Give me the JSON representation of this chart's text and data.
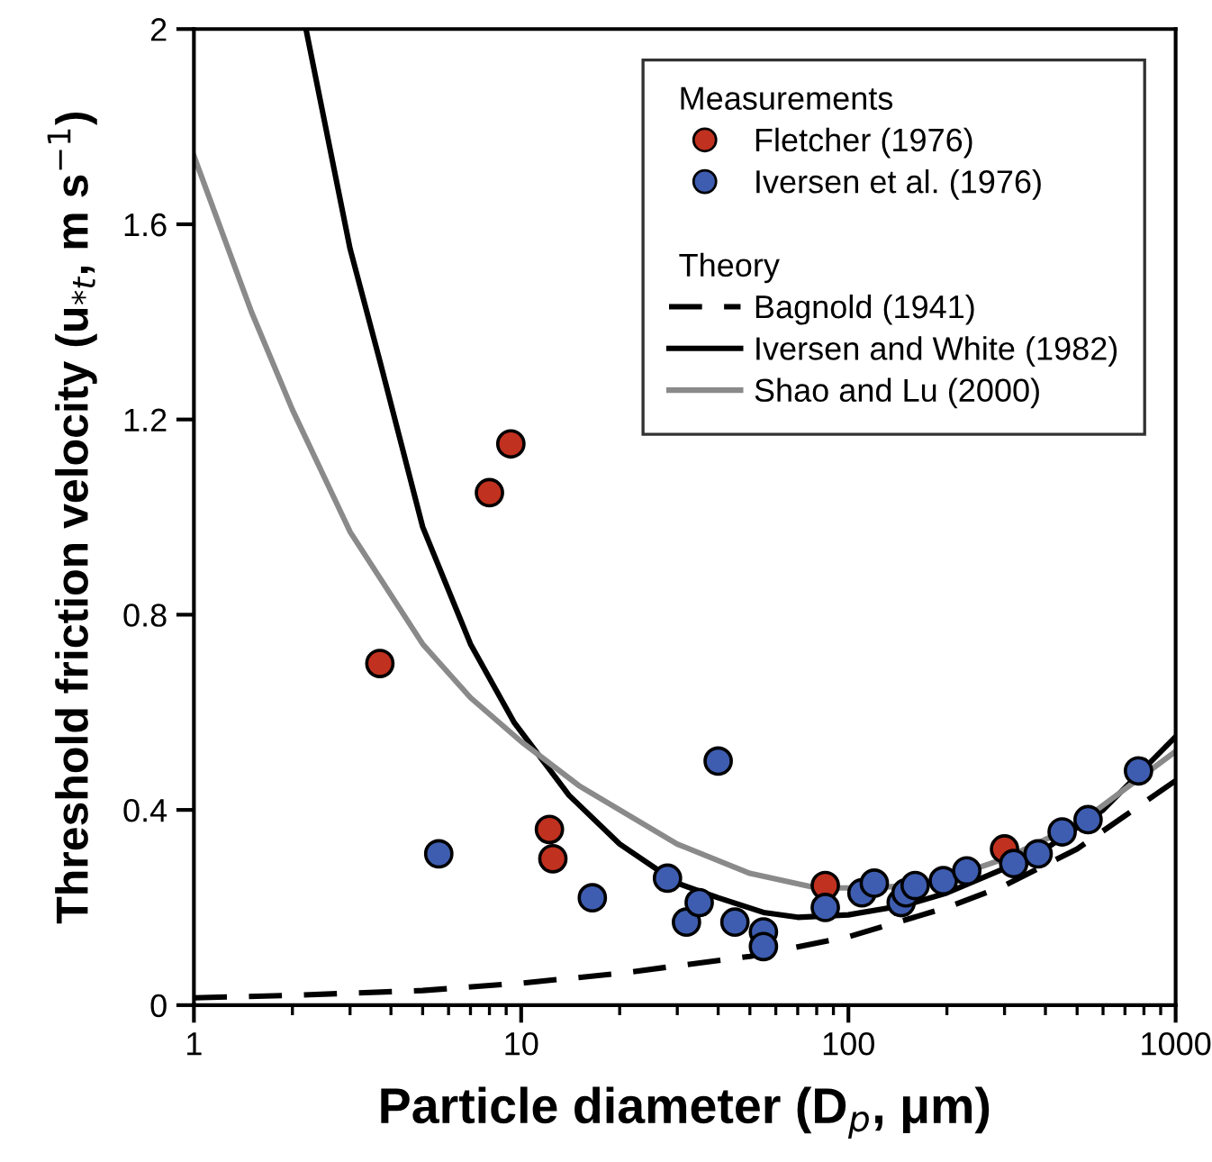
{
  "chart_data": {
    "type": "scatter",
    "xlabel": "Particle diameter (D$_{p}$, μm)",
    "ylabel": "Threshold friction velocity (u$_{*t}$, m s$^{−1}$)",
    "log": "x",
    "xlim": [
      1,
      1000
    ],
    "xticks": [
      1,
      10,
      100,
      1000
    ],
    "ylim": [
      0,
      2
    ],
    "yticks": [
      0,
      0.4,
      0.8,
      1.2,
      1.6,
      2
    ],
    "grid": false,
    "legend": "top right",
    "annotations": [
      "Measurements",
      "Theory"
    ],
    "series": [
      {
        "name": "Fletcher (1976)",
        "marker": "circle",
        "color": "#c0311f",
        "x": [
          3.7,
          8.0,
          9.3,
          12.2,
          12.5,
          85,
          300
        ],
        "values": [
          0.7,
          1.05,
          1.15,
          0.36,
          0.3,
          0.245,
          0.32
        ]
      },
      {
        "name": "Iversen et al. (1976)",
        "marker": "circle",
        "color": "#3e5db0",
        "x": [
          5.6,
          16.5,
          28,
          32,
          35,
          40,
          45,
          55,
          55,
          85,
          110,
          120,
          145,
          150,
          160,
          195,
          230,
          320,
          380,
          450,
          540,
          770
        ],
        "values": [
          0.31,
          0.22,
          0.26,
          0.17,
          0.21,
          0.5,
          0.17,
          0.15,
          0.12,
          0.2,
          0.23,
          0.25,
          0.21,
          0.23,
          0.245,
          0.255,
          0.275,
          0.29,
          0.31,
          0.355,
          0.38,
          0.48
        ]
      },
      {
        "name": "Bagnold (1941)",
        "type": "line",
        "line_style": "dashed",
        "color": "#000000",
        "x": [
          1,
          2,
          5,
          10,
          20,
          50,
          100,
          200,
          300,
          500,
          1000
        ],
        "values": [
          0.015,
          0.02,
          0.03,
          0.045,
          0.065,
          0.1,
          0.14,
          0.2,
          0.245,
          0.32,
          0.46
        ]
      },
      {
        "name": "Iversen and White (1982)",
        "type": "line",
        "line_style": "solid",
        "color": "#000000",
        "x": [
          2.2,
          3,
          3.7,
          5,
          7,
          9.5,
          14,
          20,
          30,
          40,
          55,
          70,
          100,
          150,
          200,
          300,
          400,
          600,
          1000
        ],
        "values": [
          2.0,
          1.55,
          1.32,
          0.98,
          0.74,
          0.58,
          0.43,
          0.33,
          0.25,
          0.22,
          0.19,
          0.18,
          0.185,
          0.205,
          0.23,
          0.28,
          0.32,
          0.4,
          0.55
        ]
      },
      {
        "name": "Shao and Lu (2000)",
        "type": "line",
        "line_style": "solid",
        "color": "#8a8a8a",
        "x": [
          1,
          1.5,
          2,
          3,
          5,
          7,
          10,
          15,
          20,
          30,
          50,
          80,
          120,
          150,
          200,
          300,
          500,
          1000
        ],
        "values": [
          1.74,
          1.42,
          1.22,
          0.97,
          0.74,
          0.63,
          0.54,
          0.45,
          0.4,
          0.33,
          0.27,
          0.24,
          0.24,
          0.245,
          0.26,
          0.3,
          0.37,
          0.52
        ]
      }
    ]
  }
}
